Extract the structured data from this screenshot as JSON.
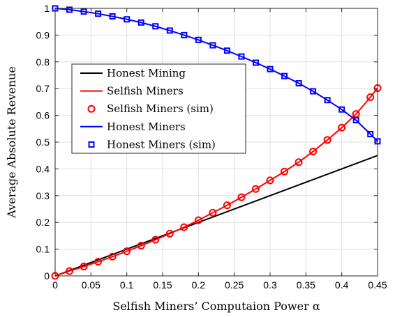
{
  "chart_data": {
    "type": "line",
    "title": "",
    "xlabel": "Selfish Miners’ Computaion Power α",
    "ylabel": "Average Absolute Revenue",
    "xlim": [
      0,
      0.45
    ],
    "ylim": [
      0,
      1
    ],
    "x_ticks": [
      0,
      0.05,
      0.1,
      0.15,
      0.2,
      0.25,
      0.3,
      0.35,
      0.4,
      0.45
    ],
    "y_ticks": [
      0,
      0.1,
      0.2,
      0.3,
      0.4,
      0.5,
      0.6,
      0.7,
      0.8,
      0.9,
      1
    ],
    "grid": true,
    "legend_position": "middle-left",
    "series": [
      {
        "name": "Honest Mining",
        "style": "line",
        "color": "#000000",
        "x": [
          0,
          0.45
        ],
        "y": [
          0,
          0.45
        ]
      },
      {
        "name": "Selfish Miners",
        "style": "line",
        "color": "#ff0000",
        "x": [
          0,
          0.02,
          0.04,
          0.06,
          0.08,
          0.1,
          0.12,
          0.14,
          0.16,
          0.18,
          0.2,
          0.22,
          0.24,
          0.26,
          0.28,
          0.3,
          0.32,
          0.34,
          0.36,
          0.38,
          0.4,
          0.42,
          0.44,
          0.45
        ],
        "y": [
          0,
          0.018,
          0.035,
          0.053,
          0.072,
          0.092,
          0.113,
          0.135,
          0.158,
          0.182,
          0.208,
          0.236,
          0.264,
          0.294,
          0.325,
          0.357,
          0.39,
          0.425,
          0.465,
          0.508,
          0.554,
          0.605,
          0.668,
          0.702
        ]
      },
      {
        "name": "Selfish Miners (sim)",
        "style": "marker-circle",
        "color": "#ff0000",
        "x": [
          0,
          0.02,
          0.04,
          0.06,
          0.08,
          0.1,
          0.12,
          0.14,
          0.16,
          0.18,
          0.2,
          0.22,
          0.24,
          0.26,
          0.28,
          0.3,
          0.32,
          0.34,
          0.36,
          0.38,
          0.4,
          0.42,
          0.44,
          0.45
        ],
        "y": [
          0,
          0.018,
          0.035,
          0.053,
          0.072,
          0.092,
          0.113,
          0.135,
          0.158,
          0.182,
          0.208,
          0.236,
          0.264,
          0.294,
          0.325,
          0.357,
          0.39,
          0.425,
          0.465,
          0.508,
          0.554,
          0.605,
          0.668,
          0.702
        ]
      },
      {
        "name": "Honest Miners",
        "style": "line",
        "color": "#0000ff",
        "x": [
          0,
          0.02,
          0.04,
          0.06,
          0.08,
          0.1,
          0.12,
          0.14,
          0.16,
          0.18,
          0.2,
          0.22,
          0.24,
          0.26,
          0.28,
          0.3,
          0.32,
          0.34,
          0.36,
          0.38,
          0.4,
          0.42,
          0.44,
          0.45
        ],
        "y": [
          1.0,
          0.995,
          0.988,
          0.98,
          0.97,
          0.959,
          0.947,
          0.933,
          0.917,
          0.9,
          0.882,
          0.862,
          0.842,
          0.82,
          0.797,
          0.773,
          0.747,
          0.72,
          0.69,
          0.657,
          0.622,
          0.582,
          0.53,
          0.503
        ]
      },
      {
        "name": "Honest Miners (sim)",
        "style": "marker-square",
        "color": "#0000ff",
        "x": [
          0,
          0.02,
          0.04,
          0.06,
          0.08,
          0.1,
          0.12,
          0.14,
          0.16,
          0.18,
          0.2,
          0.22,
          0.24,
          0.26,
          0.28,
          0.3,
          0.32,
          0.34,
          0.36,
          0.38,
          0.4,
          0.42,
          0.44,
          0.45
        ],
        "y": [
          1.0,
          0.995,
          0.988,
          0.98,
          0.97,
          0.959,
          0.947,
          0.933,
          0.917,
          0.9,
          0.882,
          0.862,
          0.842,
          0.82,
          0.797,
          0.773,
          0.747,
          0.72,
          0.69,
          0.657,
          0.622,
          0.582,
          0.53,
          0.503
        ]
      }
    ]
  }
}
